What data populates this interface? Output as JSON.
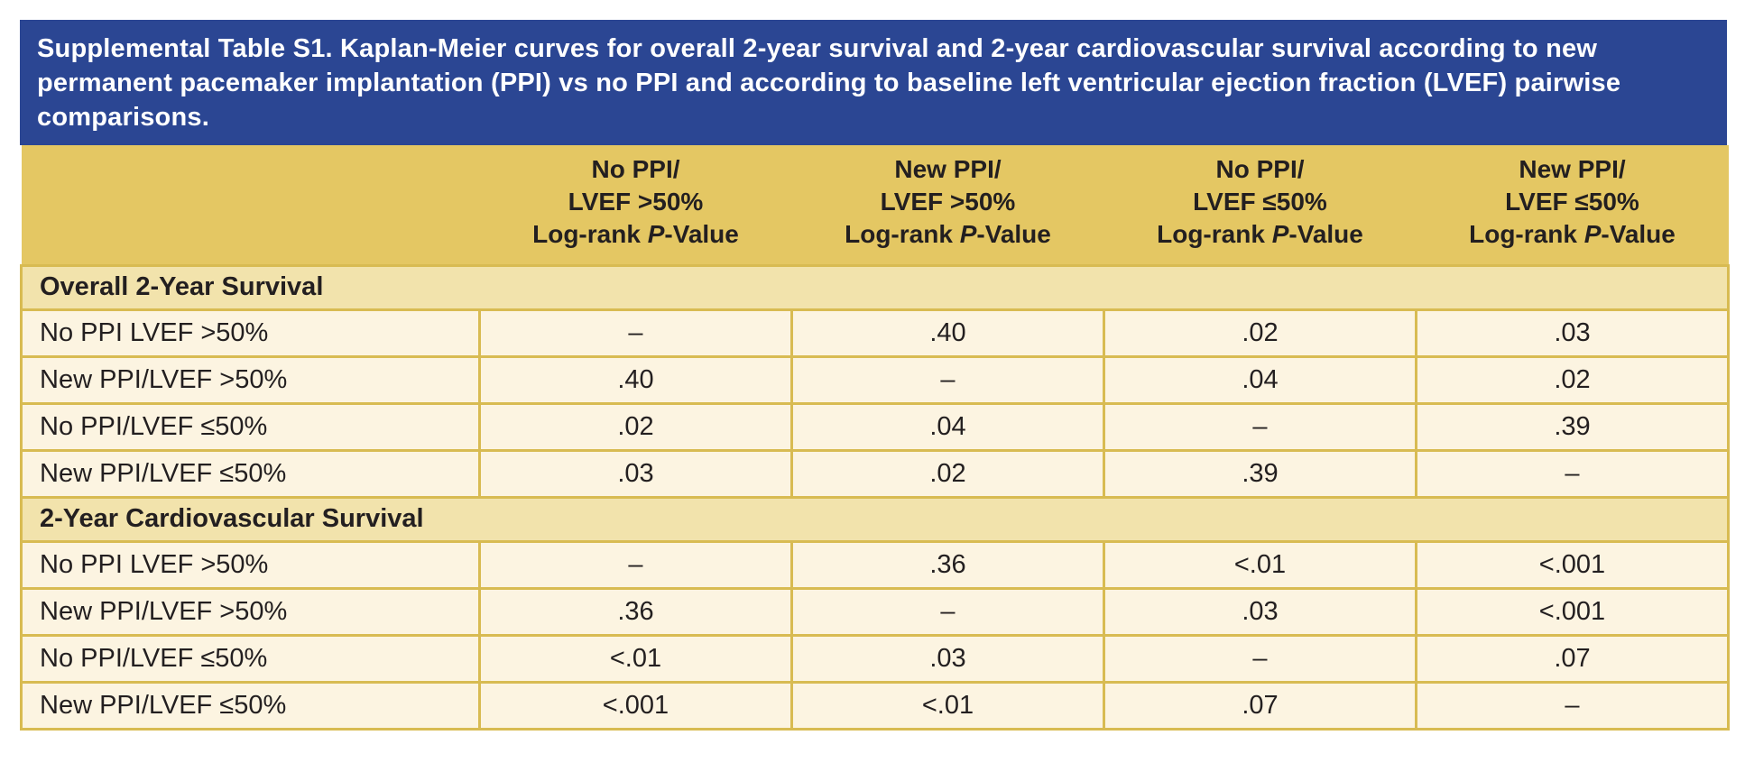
{
  "title": "Supplemental Table S1. Kaplan-Meier curves for overall 2-year survival and 2-year cardiovascular survival according to new permanent pacemaker implantation (PPI) vs no PPI and according to baseline left ventricular ejection fraction (LVEF) pairwise comparisons.",
  "colors": {
    "banner_blue": "#2B4693",
    "header_gold": "#E4C763",
    "section_gold": "#F2E3AC",
    "row_cream": "#FCF4E1",
    "border_gold": "#D8BB52",
    "title_text": "#FFFFFF",
    "body_text": "#231F20"
  },
  "table": {
    "columns": [
      {
        "line1": "No PPI/",
        "line2": "LVEF >50%",
        "line3_pre": "Log-rank ",
        "line3_italic": "P",
        "line3_post": "-Value"
      },
      {
        "line1": "New PPI/",
        "line2": "LVEF >50%",
        "line3_pre": "Log-rank ",
        "line3_italic": "P",
        "line3_post": "-Value"
      },
      {
        "line1": "No PPI/",
        "line2": "LVEF ≤50%",
        "line3_pre": "Log-rank ",
        "line3_italic": "P",
        "line3_post": "-Value"
      },
      {
        "line1": "New PPI/",
        "line2": "LVEF ≤50%",
        "line3_pre": "Log-rank ",
        "line3_italic": "P",
        "line3_post": "-Value"
      }
    ],
    "sections": [
      {
        "header": "Overall 2-Year Survival",
        "rows": [
          {
            "label": "No PPI LVEF >50%",
            "values": [
              "–",
              ".40",
              ".02",
              ".03"
            ]
          },
          {
            "label": "New PPI/LVEF >50%",
            "values": [
              ".40",
              "–",
              ".04",
              ".02"
            ]
          },
          {
            "label": "No PPI/LVEF ≤50%",
            "values": [
              ".02",
              ".04",
              "–",
              ".39"
            ]
          },
          {
            "label": "New PPI/LVEF ≤50%",
            "values": [
              ".03",
              ".02",
              ".39",
              "–"
            ]
          }
        ]
      },
      {
        "header": "2-Year Cardiovascular Survival",
        "rows": [
          {
            "label": "No PPI LVEF >50%",
            "values": [
              "–",
              ".36",
              "<.01",
              "<.001"
            ]
          },
          {
            "label": "New PPI/LVEF >50%",
            "values": [
              ".36",
              "–",
              ".03",
              "<.001"
            ]
          },
          {
            "label": "No PPI/LVEF ≤50%",
            "values": [
              "<.01",
              ".03",
              "–",
              ".07"
            ]
          },
          {
            "label": "New PPI/LVEF ≤50%",
            "values": [
              "<.001",
              "<.01",
              ".07",
              "–"
            ]
          }
        ]
      }
    ]
  }
}
